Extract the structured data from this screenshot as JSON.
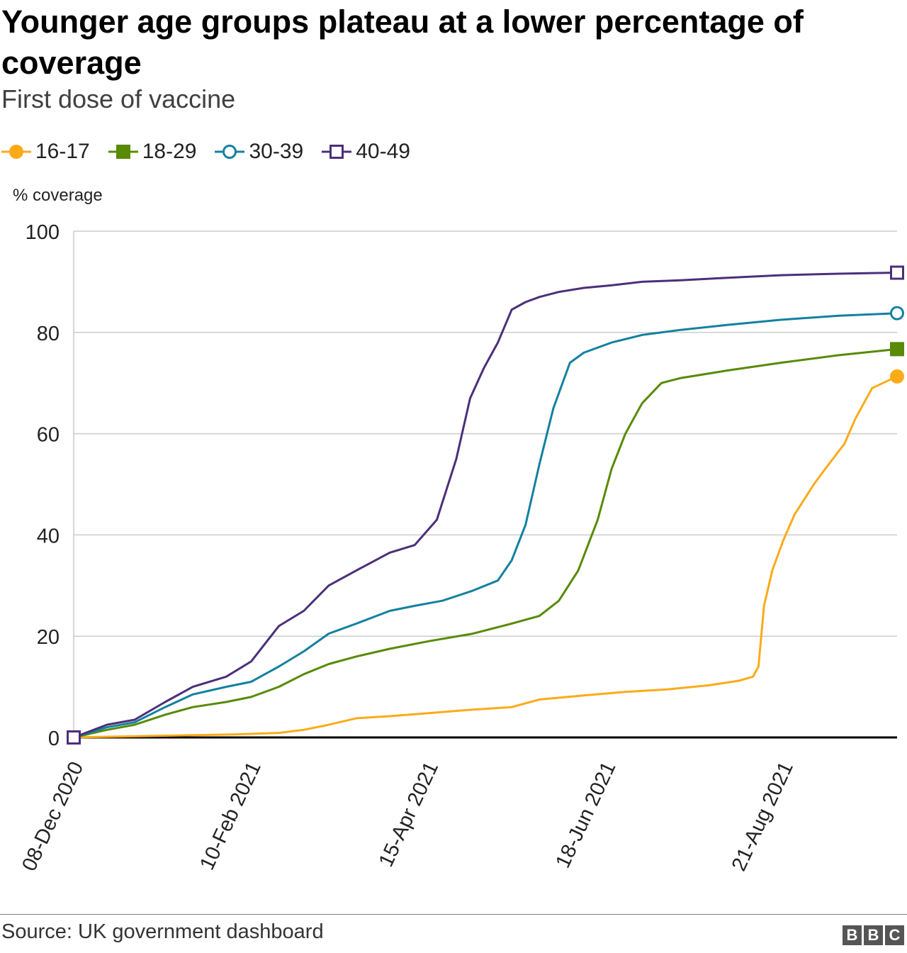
{
  "header": {
    "title": "Younger age groups plateau at a lower percentage of coverage",
    "subtitle": "First dose of vaccine"
  },
  "legend": [
    {
      "label": "16-17",
      "color": "#fbab18",
      "marker": "filled-circle"
    },
    {
      "label": "18-29",
      "color": "#588a06",
      "marker": "filled-square"
    },
    {
      "label": "30-39",
      "color": "#1380a1",
      "marker": "open-circle"
    },
    {
      "label": "40-49",
      "color": "#4b2f7a",
      "marker": "open-square"
    }
  ],
  "footer": {
    "source": "Source: UK government dashboard",
    "logo": [
      "B",
      "B",
      "C"
    ]
  },
  "chart_data": {
    "type": "line",
    "title": "Younger age groups plateau at a lower percentage of coverage",
    "subtitle": "First dose of vaccine",
    "xlabel": "",
    "ylabel": "% coverage",
    "x_type": "date",
    "xlim": [
      "2020-12-08",
      "2021-10-01"
    ],
    "ylim": [
      0,
      100
    ],
    "yticks": [
      0,
      20,
      40,
      60,
      80,
      100
    ],
    "xticks": [
      "2020-12-08",
      "2021-02-10",
      "2021-04-15",
      "2021-06-18",
      "2021-08-21"
    ],
    "xtick_labels": [
      "08-Dec 2020",
      "10-Feb 2021",
      "15-Apr 2021",
      "18-Jun 2021",
      "21-Aug 2021"
    ],
    "grid": true,
    "legend_position": "top-left",
    "series": [
      {
        "name": "16-17",
        "color": "#fbab18",
        "marker": "filled-circle",
        "x": [
          "2020-12-08",
          "2021-01-05",
          "2021-02-04",
          "2021-02-20",
          "2021-03-01",
          "2021-03-10",
          "2021-03-20",
          "2021-04-01",
          "2021-04-15",
          "2021-05-01",
          "2021-05-15",
          "2021-05-25",
          "2021-06-10",
          "2021-06-25",
          "2021-07-10",
          "2021-07-25",
          "2021-08-05",
          "2021-08-10",
          "2021-08-12",
          "2021-08-14",
          "2021-08-17",
          "2021-08-21",
          "2021-08-25",
          "2021-09-01",
          "2021-09-05",
          "2021-09-12",
          "2021-09-16",
          "2021-09-22",
          "2021-10-01"
        ],
        "y": [
          0,
          0.3,
          0.6,
          0.9,
          1.5,
          2.5,
          3.8,
          4.2,
          4.8,
          5.5,
          6.0,
          7.5,
          8.3,
          9.0,
          9.5,
          10.3,
          11.2,
          12.0,
          14.0,
          26.0,
          33.0,
          39.0,
          44.0,
          50.0,
          53.0,
          58.0,
          63.0,
          69.0,
          71.3
        ]
      },
      {
        "name": "18-29",
        "color": "#588a06",
        "marker": "filled-square",
        "x": [
          "2020-12-08",
          "2020-12-20",
          "2020-12-30",
          "2021-01-10",
          "2021-01-20",
          "2021-02-01",
          "2021-02-10",
          "2021-02-20",
          "2021-03-01",
          "2021-03-10",
          "2021-03-20",
          "2021-04-01",
          "2021-04-15",
          "2021-05-01",
          "2021-05-15",
          "2021-05-25",
          "2021-06-01",
          "2021-06-08",
          "2021-06-15",
          "2021-06-20",
          "2021-06-25",
          "2021-07-01",
          "2021-07-08",
          "2021-07-15",
          "2021-08-01",
          "2021-08-20",
          "2021-09-10",
          "2021-10-01"
        ],
        "y": [
          0,
          1.5,
          2.5,
          4.5,
          6.0,
          7.0,
          8.0,
          10.0,
          12.5,
          14.5,
          16.0,
          17.5,
          19.0,
          20.5,
          22.5,
          24.0,
          27.0,
          33.0,
          43.0,
          53.0,
          60.0,
          66.0,
          70.0,
          71.0,
          72.5,
          74.0,
          75.5,
          76.7
        ]
      },
      {
        "name": "30-39",
        "color": "#1380a1",
        "marker": "open-circle",
        "x": [
          "2020-12-08",
          "2020-12-20",
          "2020-12-30",
          "2021-01-10",
          "2021-01-20",
          "2021-02-01",
          "2021-02-10",
          "2021-02-20",
          "2021-03-01",
          "2021-03-10",
          "2021-03-20",
          "2021-04-01",
          "2021-04-10",
          "2021-04-20",
          "2021-05-01",
          "2021-05-10",
          "2021-05-15",
          "2021-05-20",
          "2021-05-25",
          "2021-05-30",
          "2021-06-05",
          "2021-06-10",
          "2021-06-20",
          "2021-07-01",
          "2021-07-15",
          "2021-08-01",
          "2021-08-20",
          "2021-09-10",
          "2021-10-01"
        ],
        "y": [
          0,
          2.0,
          3.0,
          6.0,
          8.5,
          10.0,
          11.0,
          14.0,
          17.0,
          20.5,
          22.5,
          25.0,
          26.0,
          27.0,
          29.0,
          31.0,
          35.0,
          42.0,
          54.0,
          65.0,
          74.0,
          76.0,
          78.0,
          79.5,
          80.5,
          81.5,
          82.5,
          83.3,
          83.8
        ]
      },
      {
        "name": "40-49",
        "color": "#4b2f7a",
        "marker": "open-square",
        "x": [
          "2020-12-08",
          "2020-12-20",
          "2020-12-30",
          "2021-01-10",
          "2021-01-20",
          "2021-02-01",
          "2021-02-10",
          "2021-02-20",
          "2021-03-01",
          "2021-03-10",
          "2021-03-20",
          "2021-04-01",
          "2021-04-10",
          "2021-04-18",
          "2021-04-25",
          "2021-04-30",
          "2021-05-05",
          "2021-05-10",
          "2021-05-15",
          "2021-05-20",
          "2021-05-25",
          "2021-06-01",
          "2021-06-10",
          "2021-06-20",
          "2021-07-01",
          "2021-07-15",
          "2021-08-01",
          "2021-08-20",
          "2021-09-10",
          "2021-10-01"
        ],
        "y": [
          0,
          2.5,
          3.5,
          7.0,
          10.0,
          12.0,
          15.0,
          22.0,
          25.0,
          30.0,
          33.0,
          36.5,
          38.0,
          43.0,
          55.0,
          67.0,
          73.0,
          78.0,
          84.5,
          86.0,
          87.0,
          88.0,
          88.8,
          89.3,
          90.0,
          90.3,
          90.8,
          91.3,
          91.6,
          91.8
        ]
      }
    ]
  }
}
